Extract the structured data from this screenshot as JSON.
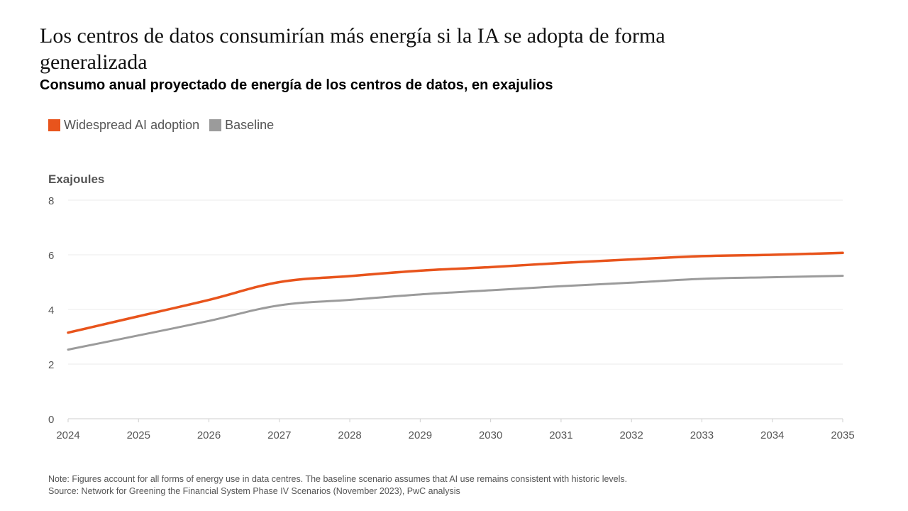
{
  "header": {
    "title": "Los centros de datos consumirían más energía si la IA se adopta de forma generalizada",
    "subtitle": "Consumo anual proyectado de energía de los centros de datos, en exajulios"
  },
  "chart_data": {
    "type": "line",
    "ylabel": "Exajoules",
    "xlabel": "",
    "x": [
      "2024",
      "2025",
      "2026",
      "2027",
      "2028",
      "2029",
      "2030",
      "2031",
      "2032",
      "2033",
      "2034",
      "2035"
    ],
    "yticks": [
      "0",
      "2",
      "4",
      "6",
      "8"
    ],
    "ylim": [
      0,
      8
    ],
    "grid": true,
    "legend_position": "top-left",
    "series": [
      {
        "name": "Widespread AI adoption",
        "color": "#e8541c",
        "values": [
          3.15,
          3.75,
          4.35,
          5.0,
          5.22,
          5.42,
          5.55,
          5.7,
          5.83,
          5.95,
          6.0,
          6.07
        ]
      },
      {
        "name": "Baseline",
        "color": "#9b9b9b",
        "values": [
          2.53,
          3.05,
          3.58,
          4.15,
          4.35,
          4.55,
          4.7,
          4.85,
          4.98,
          5.12,
          5.18,
          5.23
        ]
      }
    ]
  },
  "footer": {
    "note": "Note: Figures account for all forms of energy use in data centres. The baseline scenario assumes that AI use remains consistent with historic levels.",
    "source": "Source: Network for Greening the Financial System Phase IV Scenarios (November 2023), PwC analysis"
  }
}
